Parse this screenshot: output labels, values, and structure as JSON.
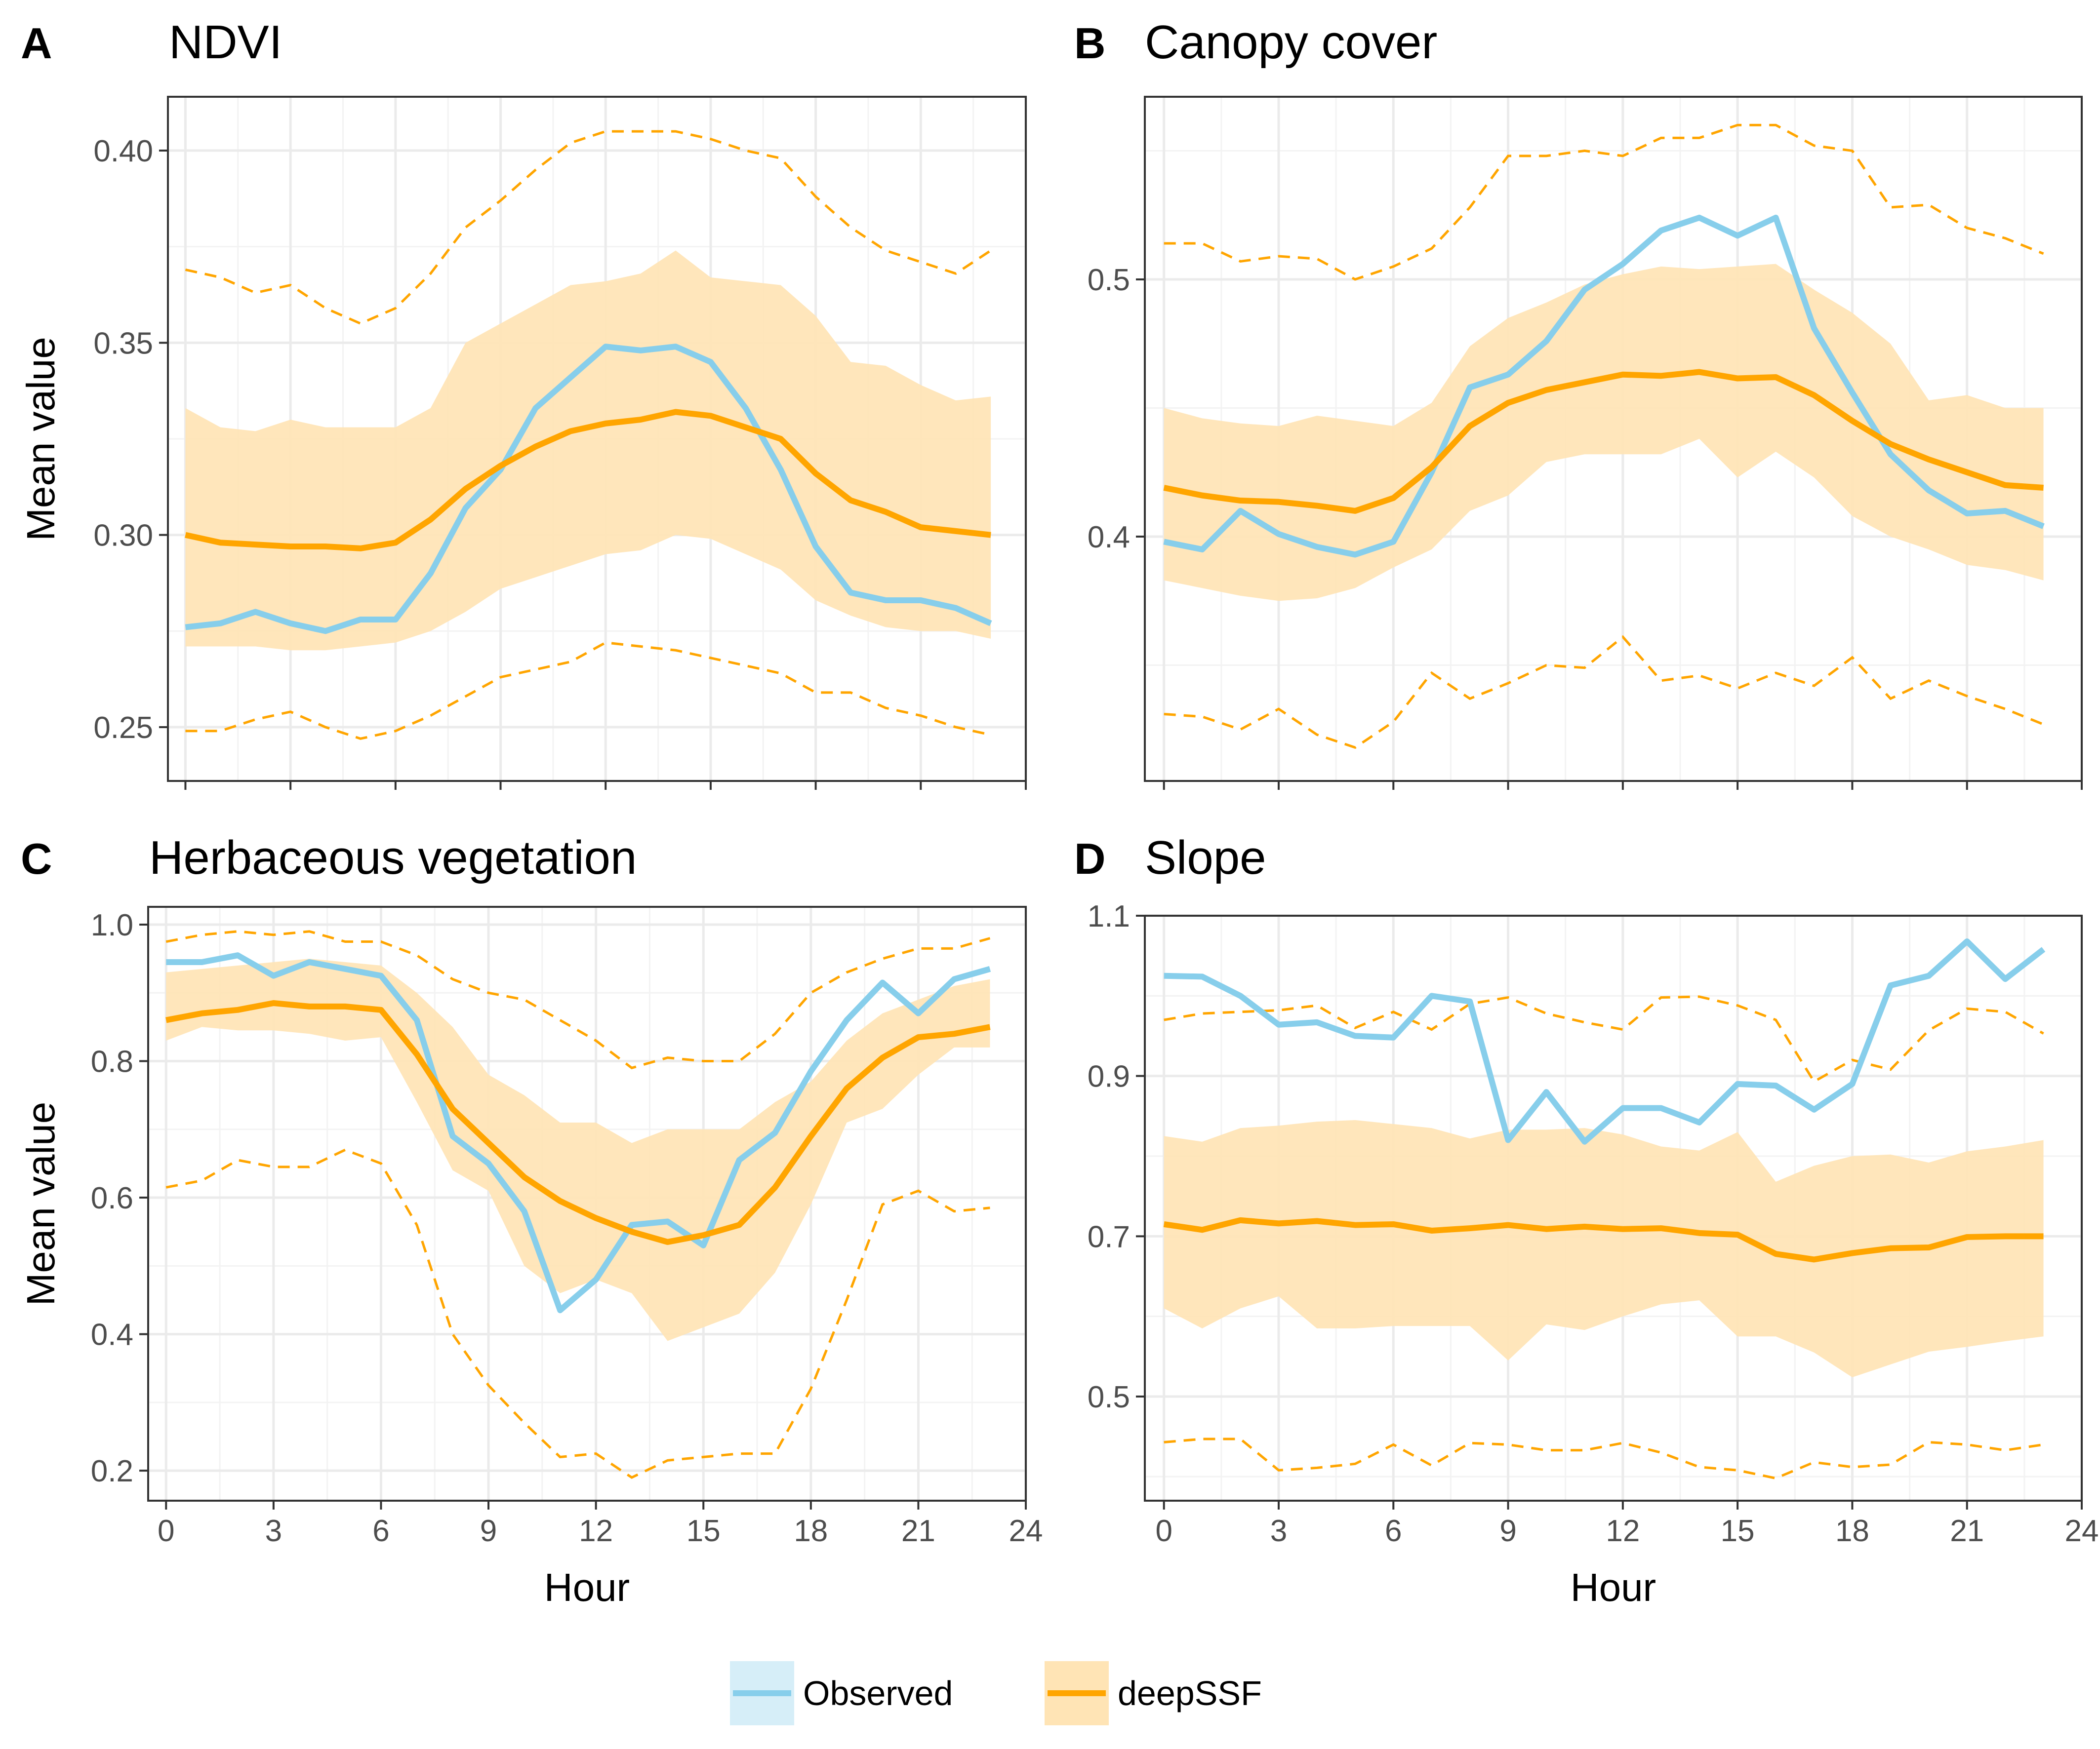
{
  "chart_data": [
    {
      "type": "line",
      "letter": "A",
      "title": "NDVI",
      "xlabel": "",
      "ylabel": "Mean value",
      "xlim": [
        -0.5,
        24
      ],
      "ylim": [
        0.236,
        0.414
      ],
      "xticks": [
        0,
        3,
        6,
        9,
        12,
        15,
        18,
        21,
        24
      ],
      "xtick_labels": [],
      "yticks": [
        0.25,
        0.3,
        0.35,
        0.4
      ],
      "ytick_labels": [
        "0.25",
        "0.30",
        "0.35",
        "0.40"
      ],
      "x": [
        0,
        1,
        2,
        3,
        4,
        5,
        6,
        7,
        8,
        9,
        10,
        11,
        12,
        13,
        14,
        15,
        16,
        17,
        18,
        19,
        20,
        21,
        22,
        23
      ],
      "series": [
        {
          "name": "Observed",
          "role": "observed",
          "values": [
            0.276,
            0.277,
            0.28,
            0.277,
            0.275,
            0.278,
            0.278,
            0.29,
            0.307,
            0.317,
            0.333,
            0.341,
            0.349,
            0.348,
            0.349,
            0.345,
            0.333,
            0.317,
            0.297,
            0.285,
            0.283,
            0.283,
            0.281,
            0.277
          ]
        },
        {
          "name": "deepSSF",
          "role": "mean",
          "values": [
            0.3,
            0.298,
            0.2975,
            0.297,
            0.297,
            0.2965,
            0.298,
            0.304,
            0.312,
            0.318,
            0.323,
            0.327,
            0.329,
            0.33,
            0.332,
            0.331,
            0.328,
            0.325,
            0.316,
            0.309,
            0.306,
            0.302,
            0.301,
            0.3
          ]
        },
        {
          "role": "band_low",
          "values": [
            0.271,
            0.271,
            0.271,
            0.27,
            0.27,
            0.271,
            0.272,
            0.275,
            0.28,
            0.286,
            0.289,
            0.292,
            0.295,
            0.296,
            0.3,
            0.299,
            0.295,
            0.291,
            0.283,
            0.279,
            0.276,
            0.275,
            0.275,
            0.273
          ]
        },
        {
          "role": "band_high",
          "values": [
            0.333,
            0.328,
            0.327,
            0.33,
            0.328,
            0.328,
            0.328,
            0.333,
            0.35,
            0.355,
            0.36,
            0.365,
            0.366,
            0.368,
            0.374,
            0.367,
            0.366,
            0.365,
            0.357,
            0.345,
            0.344,
            0.339,
            0.335,
            0.336
          ]
        },
        {
          "role": "quantile_low",
          "values": [
            0.249,
            0.249,
            0.252,
            0.254,
            0.25,
            0.247,
            0.249,
            0.253,
            0.258,
            0.263,
            0.265,
            0.267,
            0.272,
            0.271,
            0.27,
            0.268,
            0.266,
            0.264,
            0.259,
            0.259,
            0.255,
            0.253,
            0.25,
            0.248
          ]
        },
        {
          "role": "quantile_high",
          "values": [
            0.369,
            0.367,
            0.363,
            0.365,
            0.359,
            0.355,
            0.359,
            0.368,
            0.38,
            0.387,
            0.395,
            0.402,
            0.405,
            0.405,
            0.405,
            0.403,
            0.4,
            0.398,
            0.388,
            0.38,
            0.374,
            0.371,
            0.368,
            0.374
          ]
        }
      ]
    },
    {
      "type": "line",
      "letter": "B",
      "title": "Canopy cover",
      "xlabel": "",
      "ylabel": "",
      "xlim": [
        -0.5,
        24
      ],
      "ylim": [
        0.305,
        0.571
      ],
      "xticks": [
        0,
        3,
        6,
        9,
        12,
        15,
        18,
        21,
        24
      ],
      "xtick_labels": [],
      "yticks": [
        0.4,
        0.5
      ],
      "ytick_labels": [
        "0.4",
        "0.5"
      ],
      "x": [
        0,
        1,
        2,
        3,
        4,
        5,
        6,
        7,
        8,
        9,
        10,
        11,
        12,
        13,
        14,
        15,
        16,
        17,
        18,
        19,
        20,
        21,
        22,
        23
      ],
      "series": [
        {
          "name": "Observed",
          "role": "observed",
          "values": [
            0.398,
            0.395,
            0.41,
            0.401,
            0.396,
            0.393,
            0.398,
            0.425,
            0.458,
            0.463,
            0.476,
            0.496,
            0.506,
            0.519,
            0.524,
            0.517,
            0.524,
            0.481,
            0.456,
            0.432,
            0.418,
            0.409,
            0.41,
            0.404
          ]
        },
        {
          "name": "deepSSF",
          "role": "mean",
          "values": [
            0.419,
            0.416,
            0.414,
            0.4135,
            0.412,
            0.41,
            0.415,
            0.427,
            0.443,
            0.452,
            0.457,
            0.46,
            0.463,
            0.4625,
            0.464,
            0.4615,
            0.462,
            0.455,
            0.445,
            0.436,
            0.43,
            0.425,
            0.42,
            0.419
          ]
        },
        {
          "role": "band_low",
          "values": [
            0.383,
            0.38,
            0.377,
            0.375,
            0.376,
            0.38,
            0.388,
            0.395,
            0.41,
            0.416,
            0.429,
            0.432,
            0.432,
            0.432,
            0.438,
            0.423,
            0.433,
            0.423,
            0.408,
            0.4,
            0.395,
            0.389,
            0.387,
            0.383
          ]
        },
        {
          "role": "band_high",
          "values": [
            0.45,
            0.446,
            0.444,
            0.443,
            0.447,
            0.445,
            0.443,
            0.452,
            0.474,
            0.485,
            0.491,
            0.498,
            0.502,
            0.505,
            0.504,
            0.505,
            0.506,
            0.496,
            0.487,
            0.475,
            0.453,
            0.455,
            0.45,
            0.45
          ]
        },
        {
          "role": "quantile_low",
          "values": [
            0.331,
            0.33,
            0.325,
            0.333,
            0.323,
            0.318,
            0.328,
            0.347,
            0.337,
            0.343,
            0.35,
            0.349,
            0.361,
            0.344,
            0.346,
            0.341,
            0.347,
            0.342,
            0.353,
            0.337,
            0.344,
            0.338,
            0.333,
            0.327
          ]
        },
        {
          "role": "quantile_high",
          "values": [
            0.514,
            0.514,
            0.507,
            0.509,
            0.508,
            0.5,
            0.505,
            0.512,
            0.528,
            0.548,
            0.548,
            0.55,
            0.548,
            0.555,
            0.555,
            0.56,
            0.56,
            0.552,
            0.55,
            0.528,
            0.529,
            0.52,
            0.516,
            0.51
          ]
        }
      ]
    },
    {
      "type": "line",
      "letter": "C",
      "title": "Herbaceous vegetation",
      "xlabel": "Hour",
      "ylabel": "Mean value",
      "xlim": [
        -0.5,
        24
      ],
      "ylim": [
        0.156,
        1.026
      ],
      "xticks": [
        0,
        3,
        6,
        9,
        12,
        15,
        18,
        21,
        24
      ],
      "xtick_labels": [
        "0",
        "3",
        "6",
        "9",
        "12",
        "15",
        "18",
        "21",
        "24"
      ],
      "yticks": [
        0.2,
        0.4,
        0.6,
        0.8,
        1.0
      ],
      "ytick_labels": [
        "0.2",
        "0.4",
        "0.6",
        "0.8",
        "1.0"
      ],
      "x": [
        0,
        1,
        2,
        3,
        4,
        5,
        6,
        7,
        8,
        9,
        10,
        11,
        12,
        13,
        14,
        15,
        16,
        17,
        18,
        19,
        20,
        21,
        22,
        23
      ],
      "series": [
        {
          "name": "Observed",
          "role": "observed",
          "values": [
            0.945,
            0.945,
            0.955,
            0.925,
            0.945,
            0.935,
            0.925,
            0.86,
            0.69,
            0.65,
            0.58,
            0.435,
            0.48,
            0.56,
            0.565,
            0.53,
            0.655,
            0.695,
            0.785,
            0.86,
            0.915,
            0.87,
            0.92,
            0.935
          ]
        },
        {
          "name": "deepSSF",
          "role": "mean",
          "values": [
            0.86,
            0.87,
            0.875,
            0.885,
            0.88,
            0.88,
            0.875,
            0.81,
            0.73,
            0.68,
            0.63,
            0.595,
            0.57,
            0.55,
            0.535,
            0.545,
            0.56,
            0.615,
            0.69,
            0.76,
            0.805,
            0.835,
            0.84,
            0.85
          ]
        },
        {
          "role": "band_low",
          "values": [
            0.83,
            0.85,
            0.845,
            0.845,
            0.84,
            0.83,
            0.835,
            0.74,
            0.64,
            0.61,
            0.5,
            0.46,
            0.48,
            0.46,
            0.39,
            0.41,
            0.43,
            0.49,
            0.59,
            0.71,
            0.73,
            0.78,
            0.82,
            0.82
          ]
        },
        {
          "role": "band_high",
          "values": [
            0.93,
            0.935,
            0.94,
            0.945,
            0.95,
            0.945,
            0.94,
            0.9,
            0.85,
            0.78,
            0.75,
            0.71,
            0.71,
            0.68,
            0.7,
            0.7,
            0.7,
            0.74,
            0.77,
            0.83,
            0.87,
            0.89,
            0.91,
            0.92
          ]
        },
        {
          "role": "quantile_low",
          "values": [
            0.615,
            0.625,
            0.655,
            0.645,
            0.645,
            0.67,
            0.65,
            0.56,
            0.4,
            0.325,
            0.27,
            0.22,
            0.225,
            0.19,
            0.215,
            0.22,
            0.225,
            0.225,
            0.32,
            0.45,
            0.59,
            0.61,
            0.58,
            0.585
          ]
        },
        {
          "role": "quantile_high",
          "values": [
            0.975,
            0.985,
            0.99,
            0.985,
            0.99,
            0.975,
            0.975,
            0.955,
            0.92,
            0.9,
            0.89,
            0.86,
            0.83,
            0.79,
            0.805,
            0.8,
            0.8,
            0.84,
            0.9,
            0.93,
            0.95,
            0.965,
            0.965,
            0.98
          ]
        }
      ]
    },
    {
      "type": "line",
      "letter": "D",
      "title": "Slope",
      "xlabel": "Hour",
      "ylabel": "",
      "xlim": [
        -0.5,
        24
      ],
      "ylim": [
        0.37,
        1.1
      ],
      "xticks": [
        0,
        3,
        6,
        9,
        12,
        15,
        18,
        21,
        24
      ],
      "xtick_labels": [
        "0",
        "3",
        "6",
        "9",
        "12",
        "15",
        "18",
        "21",
        "24"
      ],
      "yticks": [
        0.5,
        0.7,
        0.9,
        1.1
      ],
      "ytick_labels": [
        "0.5",
        "0.7",
        "0.9",
        "1.1"
      ],
      "x": [
        0,
        1,
        2,
        3,
        4,
        5,
        6,
        7,
        8,
        9,
        10,
        11,
        12,
        13,
        14,
        15,
        16,
        17,
        18,
        19,
        20,
        21,
        22,
        23
      ],
      "series": [
        {
          "name": "Observed",
          "role": "observed",
          "values": [
            1.025,
            1.024,
            1.0,
            0.964,
            0.967,
            0.95,
            0.948,
            1.0,
            0.993,
            0.82,
            0.88,
            0.818,
            0.86,
            0.86,
            0.842,
            0.89,
            0.888,
            0.858,
            0.89,
            1.013,
            1.025,
            1.068,
            1.021,
            1.058
          ]
        },
        {
          "name": "deepSSF",
          "role": "mean",
          "values": [
            0.715,
            0.708,
            0.72,
            0.716,
            0.719,
            0.714,
            0.715,
            0.707,
            0.71,
            0.714,
            0.709,
            0.712,
            0.709,
            0.71,
            0.704,
            0.702,
            0.678,
            0.671,
            0.679,
            0.685,
            0.686,
            0.699,
            0.7,
            0.7
          ]
        },
        {
          "role": "band_low",
          "values": [
            0.61,
            0.585,
            0.61,
            0.625,
            0.585,
            0.585,
            0.588,
            0.588,
            0.588,
            0.545,
            0.59,
            0.583,
            0.6,
            0.615,
            0.62,
            0.575,
            0.575,
            0.555,
            0.524,
            0.54,
            0.556,
            0.562,
            0.569,
            0.575
          ]
        },
        {
          "role": "band_high",
          "values": [
            0.825,
            0.818,
            0.835,
            0.838,
            0.843,
            0.845,
            0.84,
            0.835,
            0.822,
            0.833,
            0.833,
            0.835,
            0.827,
            0.812,
            0.807,
            0.83,
            0.768,
            0.788,
            0.8,
            0.802,
            0.792,
            0.806,
            0.812,
            0.82
          ]
        },
        {
          "role": "quantile_low",
          "values": [
            0.443,
            0.447,
            0.447,
            0.408,
            0.411,
            0.416,
            0.44,
            0.414,
            0.442,
            0.44,
            0.433,
            0.433,
            0.442,
            0.43,
            0.412,
            0.408,
            0.398,
            0.418,
            0.412,
            0.415,
            0.443,
            0.44,
            0.433,
            0.44
          ]
        },
        {
          "role": "quantile_high",
          "values": [
            0.97,
            0.978,
            0.98,
            0.982,
            0.988,
            0.96,
            0.98,
            0.958,
            0.99,
            0.998,
            0.978,
            0.967,
            0.958,
            0.998,
            0.999,
            0.988,
            0.97,
            0.893,
            0.92,
            0.908,
            0.957,
            0.984,
            0.98,
            0.953
          ]
        }
      ]
    }
  ],
  "legend": {
    "position": "bottom",
    "items": [
      {
        "label": "Observed",
        "color": "#87CEEB"
      },
      {
        "label": "deepSSF",
        "color": "#FFA500"
      }
    ]
  },
  "colors": {
    "observed": "#87CEEB",
    "observed_key_fill": "#D6EEF8",
    "model": "#FFA500",
    "band": "#FFE4B5"
  }
}
